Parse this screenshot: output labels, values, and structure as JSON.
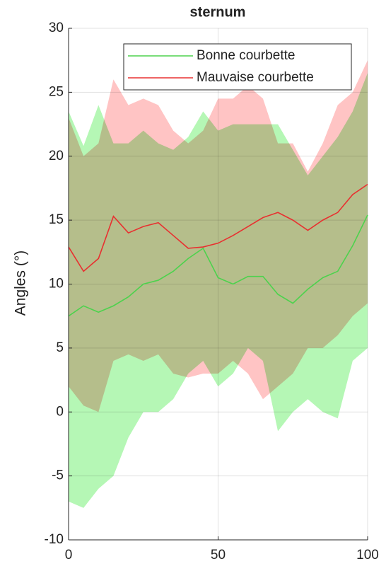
{
  "chart_data": {
    "type": "line",
    "title": "sternum",
    "ylabel": "Angles (°)",
    "x": [
      0,
      5,
      10,
      15,
      20,
      25,
      30,
      35,
      40,
      45,
      50,
      55,
      60,
      65,
      70,
      75,
      80,
      85,
      90,
      95,
      100
    ],
    "series": [
      {
        "name": "Bonne courbette",
        "color": "#4dd24d",
        "band_color": "#b5f7b5",
        "values": [
          7.5,
          8.3,
          7.8,
          8.3,
          9.0,
          10.0,
          10.3,
          11.0,
          12.0,
          12.8,
          10.5,
          10.0,
          10.6,
          10.6,
          9.2,
          8.5,
          9.6,
          10.5,
          11.0,
          13.0,
          15.4
        ],
        "upper": [
          23.5,
          20.8,
          24,
          21,
          21,
          22,
          21,
          20.5,
          21.5,
          23.5,
          22,
          22.5,
          22.5,
          22.5,
          22.5,
          20.5,
          18.5,
          20,
          21.5,
          23.5,
          26.5
        ],
        "lower": [
          -7,
          -7.5,
          -6,
          -5,
          -2,
          0,
          0,
          1,
          3,
          4,
          2,
          3,
          5,
          4,
          -1.5,
          0,
          1,
          0,
          -0.5,
          4,
          5
        ]
      },
      {
        "name": "Mauvaise courbette",
        "color": "#e83030",
        "band_color": "#ffc4c4",
        "values": [
          12.9,
          11.0,
          12.0,
          15.3,
          14.0,
          14.5,
          14.8,
          13.8,
          12.8,
          12.9,
          13.2,
          13.8,
          14.5,
          15.2,
          15.6,
          15.0,
          14.2,
          15.0,
          15.6,
          17.0,
          17.8
        ],
        "upper": [
          23,
          20,
          21,
          26,
          24,
          24.5,
          24,
          22,
          21,
          22,
          24.5,
          24.5,
          25.5,
          24.5,
          21,
          21,
          18.8,
          21,
          24,
          25,
          27.5
        ],
        "lower": [
          2,
          0.5,
          0,
          4,
          4.5,
          4,
          4.5,
          3,
          2.7,
          3,
          3,
          4,
          3,
          1,
          2,
          3,
          5,
          5,
          6,
          7.5,
          8.5
        ]
      }
    ],
    "xlim": [
      0,
      100
    ],
    "xticks": [
      0,
      50,
      100
    ],
    "ylim": [
      -10,
      30
    ],
    "yticks": [
      -10,
      -5,
      0,
      5,
      10,
      15,
      20,
      25,
      30
    ],
    "grid": true,
    "legend": "northeast"
  }
}
